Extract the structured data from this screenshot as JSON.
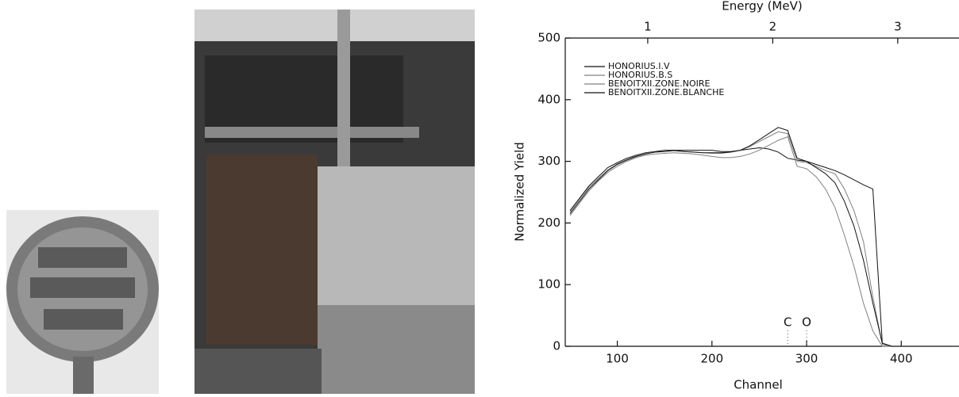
{
  "chart_data": {
    "type": "line",
    "x_label": "Channel",
    "y_label": "Normalized Yield",
    "x2_label": "Energy (MeV)",
    "x": [
      50,
      60,
      70,
      80,
      90,
      100,
      110,
      120,
      130,
      140,
      150,
      160,
      170,
      180,
      190,
      200,
      210,
      220,
      230,
      240,
      250,
      260,
      270,
      280,
      290,
      300,
      310,
      320,
      330,
      340,
      350,
      360,
      370,
      380,
      390,
      400,
      410,
      420,
      430,
      440,
      450,
      460
    ],
    "series": [
      {
        "name": "HONORIUS.I.V",
        "color": "#111111",
        "values": [
          220,
          240,
          260,
          275,
          290,
          298,
          305,
          310,
          314,
          316,
          318,
          318,
          318,
          318,
          318,
          318,
          316,
          316,
          318,
          320,
          322,
          320,
          315,
          305,
          302,
          300,
          295,
          290,
          285,
          278,
          270,
          262,
          255,
          5,
          0,
          0,
          0,
          0,
          0,
          0,
          0,
          0
        ]
      },
      {
        "name": "HONORIUS.B.S",
        "color": "#808080",
        "values": [
          218,
          238,
          258,
          272,
          286,
          296,
          303,
          309,
          313,
          315,
          316,
          317,
          316,
          315,
          314,
          313,
          313,
          315,
          318,
          324,
          332,
          340,
          348,
          345,
          300,
          298,
          292,
          285,
          280,
          255,
          220,
          170,
          80,
          3,
          0,
          0,
          0,
          0,
          0,
          0,
          0,
          0
        ]
      },
      {
        "name": "BENOITXII.ZONE.NOIRE",
        "color": "#808080",
        "values": [
          212,
          232,
          252,
          268,
          282,
          292,
          300,
          306,
          310,
          312,
          313,
          314,
          313,
          312,
          310,
          308,
          306,
          306,
          308,
          312,
          318,
          326,
          334,
          340,
          292,
          288,
          275,
          255,
          225,
          180,
          130,
          70,
          25,
          0,
          0,
          0,
          0,
          0,
          0,
          0,
          0,
          0
        ]
      },
      {
        "name": "BENOITXII.ZONE.BLANCHE",
        "color": "#111111",
        "values": [
          215,
          235,
          255,
          270,
          285,
          295,
          302,
          308,
          312,
          315,
          316,
          318,
          316,
          315,
          314,
          314,
          314,
          315,
          318,
          325,
          335,
          345,
          355,
          350,
          305,
          300,
          290,
          280,
          265,
          235,
          195,
          140,
          70,
          5,
          0,
          0,
          0,
          0,
          0,
          0,
          0,
          0
        ]
      }
    ],
    "xlim": [
      45,
      461
    ],
    "xticks": [
      100,
      200,
      300,
      400
    ],
    "ylim": [
      0,
      500
    ],
    "yticks": [
      0,
      100,
      200,
      300,
      400,
      500
    ],
    "x2lim": [
      0.34,
      3.49
    ],
    "x2ticks": [
      1,
      2,
      3
    ],
    "annotations": [
      {
        "text": "C",
        "x": 280
      },
      {
        "text": "O",
        "x": 300
      }
    ]
  }
}
